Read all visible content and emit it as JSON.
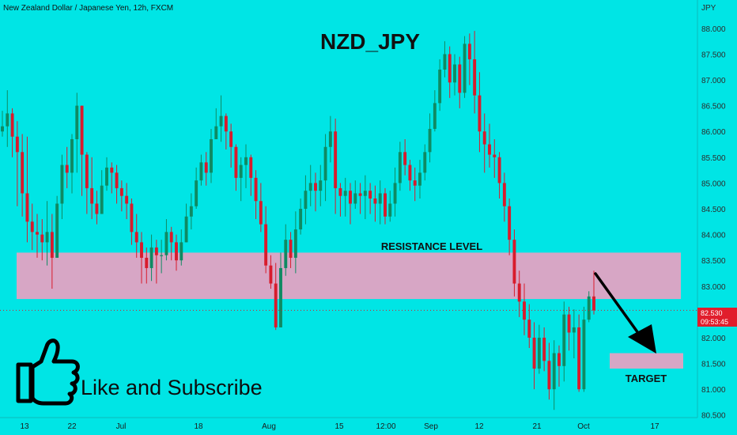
{
  "header": {
    "symbol_line": "New Zealand Dollar / Japanese Yen, 12h, FXCM",
    "title": "NZD_JPY",
    "currency": "JPY"
  },
  "annotations": {
    "resistance_label": "RESISTANCE LEVEL",
    "target_label": "TARGET",
    "cta": "Like and Subscribe"
  },
  "colors": {
    "background": "#00e5e5",
    "bull": "#0f8a62",
    "bear": "#d81b2c",
    "zone": "#d7a6c5",
    "price_tag": "#e11d2c"
  },
  "price_tag": {
    "price": "82.530",
    "countdown": "09:53:45"
  },
  "chart_data": {
    "type": "candlestick",
    "title": "NZD_JPY",
    "xlabel": "",
    "ylabel": "",
    "y_axis_position": "right",
    "ylim": [
      80.45,
      88.55
    ],
    "y_ticks": [
      "80.500",
      "81.000",
      "81.500",
      "82.000",
      "82.500",
      "83.000",
      "83.500",
      "84.000",
      "84.500",
      "85.000",
      "85.500",
      "86.000",
      "86.500",
      "87.000",
      "87.500",
      "88.000"
    ],
    "x_ticks": [
      "13",
      "22",
      "Jul",
      "18",
      "Aug",
      "15",
      "12:00",
      "Sep",
      "12",
      "21",
      "Oct",
      "17"
    ],
    "last_price": 82.53,
    "resistance_zone": [
      82.75,
      83.65
    ],
    "target_zone": [
      81.4,
      81.7
    ],
    "closes": [
      86.1,
      86.35,
      85.9,
      85.6,
      84.8,
      84.25,
      84.05,
      84.0,
      83.85,
      84.05,
      83.55,
      84.6,
      85.35,
      85.2,
      85.85,
      86.5,
      85.55,
      84.9,
      84.6,
      84.4,
      84.95,
      85.3,
      85.2,
      84.9,
      84.75,
      84.6,
      84.05,
      83.85,
      83.55,
      83.35,
      83.75,
      83.6,
      83.6,
      84.05,
      83.85,
      83.5,
      83.85,
      84.35,
      84.55,
      85.05,
      85.4,
      85.2,
      85.85,
      86.1,
      86.3,
      86.0,
      85.7,
      85.1,
      85.35,
      85.5,
      85.1,
      84.65,
      84.2,
      83.4,
      83.05,
      82.2,
      83.35,
      83.9,
      83.55,
      84.1,
      84.5,
      84.85,
      85.0,
      84.85,
      85.05,
      85.7,
      86.0,
      84.9,
      84.75,
      84.85,
      84.6,
      84.8,
      84.75,
      84.85,
      84.7,
      84.6,
      84.8,
      84.35,
      84.6,
      85.0,
      85.6,
      85.35,
      85.05,
      84.95,
      85.2,
      85.6,
      86.05,
      86.55,
      87.2,
      87.5,
      86.95,
      87.3,
      86.75,
      87.7,
      87.4,
      86.7,
      86.0,
      85.75,
      85.55,
      85.5,
      85.0,
      84.55,
      83.9,
      83.05,
      82.7,
      82.35,
      82.0,
      81.4,
      82.0,
      81.55,
      81.0,
      81.7,
      81.45,
      82.45,
      82.1,
      82.2,
      81.0,
      82.35,
      82.8,
      82.53
    ],
    "highs": [
      86.4,
      86.8,
      86.45,
      86.2,
      85.95,
      85.9,
      84.6,
      84.4,
      84.3,
      84.65,
      84.4,
      84.75,
      85.55,
      85.7,
      85.95,
      86.75,
      86.5,
      85.6,
      85.5,
      84.85,
      85.25,
      85.5,
      85.4,
      85.35,
      85.05,
      85.0,
      84.7,
      84.4,
      84.05,
      83.75,
      84.0,
      83.9,
      83.9,
      84.3,
      84.15,
      84.0,
      84.1,
      84.6,
      84.8,
      85.3,
      85.55,
      85.6,
      86.05,
      86.45,
      86.7,
      86.35,
      86.15,
      85.75,
      85.5,
      85.75,
      85.55,
      85.25,
      85.0,
      84.55,
      83.6,
      83.45,
      83.65,
      84.2,
      84.05,
      84.45,
      84.7,
      85.15,
      85.35,
      85.2,
      85.35,
      85.95,
      86.3,
      86.25,
      85.0,
      85.1,
      85.0,
      85.05,
      85.0,
      85.15,
      85.0,
      84.95,
      85.05,
      84.9,
      84.85,
      85.3,
      85.8,
      85.85,
      85.45,
      85.3,
      85.45,
      85.75,
      86.35,
      86.8,
      87.4,
      87.75,
      87.65,
      87.5,
      87.45,
      87.85,
      87.9,
      87.95,
      87.15,
      86.35,
      86.15,
      85.85,
      85.6,
      85.2,
      84.7,
      84.1,
      83.3,
      83.05,
      82.65,
      82.3,
      82.25,
      82.2,
      81.9,
      81.95,
      81.85,
      82.7,
      82.6,
      82.55,
      82.45,
      82.6,
      82.9,
      83.3
    ],
    "lows": [
      85.9,
      85.7,
      85.5,
      84.55,
      84.35,
      83.85,
      83.7,
      83.55,
      83.5,
      83.4,
      82.95,
      83.95,
      84.3,
      84.9,
      84.8,
      85.2,
      84.75,
      84.4,
      84.3,
      84.2,
      84.45,
      84.85,
      84.8,
      84.6,
      84.45,
      84.3,
      83.8,
      83.55,
      83.05,
      83.05,
      83.1,
      83.05,
      83.25,
      83.5,
      83.5,
      83.3,
      83.4,
      83.9,
      84.1,
      84.5,
      84.95,
      84.95,
      85.0,
      85.85,
      85.8,
      85.65,
      85.3,
      84.85,
      84.65,
      84.9,
      84.75,
      84.3,
      84.05,
      83.25,
      82.95,
      82.15,
      82.25,
      83.2,
      83.35,
      83.25,
      84.0,
      84.2,
      84.55,
      84.45,
      84.55,
      84.65,
      85.4,
      84.4,
      84.35,
      84.35,
      84.2,
      84.5,
      84.4,
      84.3,
      84.4,
      84.25,
      84.2,
      84.2,
      84.25,
      84.35,
      84.85,
      85.15,
      84.85,
      84.65,
      84.7,
      85.05,
      85.4,
      86.0,
      86.4,
      87.05,
      86.65,
      86.7,
      86.45,
      86.65,
      86.9,
      86.35,
      85.6,
      85.2,
      85.3,
      85.1,
      84.7,
      84.25,
      83.6,
      82.8,
      82.4,
      82.05,
      81.8,
      81.0,
      81.3,
      81.35,
      80.8,
      80.6,
      81.05,
      81.15,
      81.75,
      81.6,
      80.95,
      80.95,
      82.3,
      82.45
    ]
  }
}
